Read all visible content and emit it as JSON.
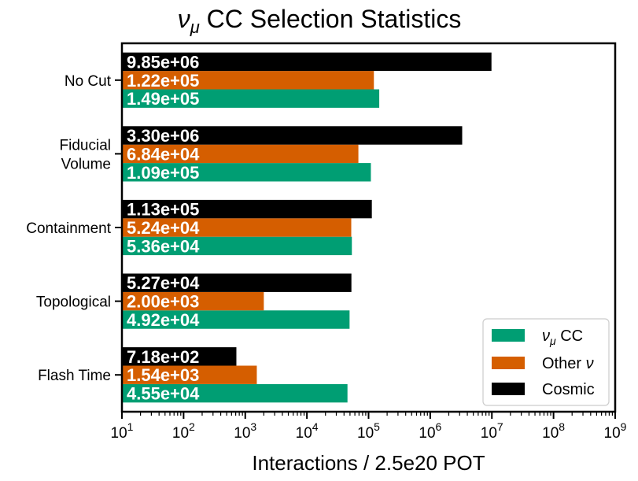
{
  "chart_data": {
    "type": "bar",
    "orientation": "horizontal",
    "title": "νμ CC Selection Statistics",
    "xlabel": "Interactions / 2.5e20 POT",
    "ylabel": "",
    "xscale": "log",
    "xlim": [
      10,
      1000000000
    ],
    "x_ticks": [
      {
        "base": "10",
        "exp": "1"
      },
      {
        "base": "10",
        "exp": "2"
      },
      {
        "base": "10",
        "exp": "3"
      },
      {
        "base": "10",
        "exp": "4"
      },
      {
        "base": "10",
        "exp": "5"
      },
      {
        "base": "10",
        "exp": "6"
      },
      {
        "base": "10",
        "exp": "7"
      },
      {
        "base": "10",
        "exp": "8"
      },
      {
        "base": "10",
        "exp": "9"
      }
    ],
    "categories": [
      [
        "No Cut"
      ],
      [
        "Fiducial",
        "Volume"
      ],
      [
        "Containment"
      ],
      [
        "Topological"
      ],
      [
        "Flash Time"
      ]
    ],
    "series": [
      {
        "name": "νμ CC",
        "color": "#009E73",
        "values": [
          149000,
          109000,
          53600,
          49200,
          45500
        ],
        "labels": [
          "1.49e+05",
          "1.09e+05",
          "5.36e+04",
          "4.92e+04",
          "4.55e+04"
        ]
      },
      {
        "name": "Other ν",
        "color": "#D55E00",
        "values": [
          122000,
          68400,
          52400,
          2000,
          1540
        ],
        "labels": [
          "1.22e+05",
          "6.84e+04",
          "5.24e+04",
          "2.00e+03",
          "1.54e+03"
        ]
      },
      {
        "name": "Cosmic",
        "color": "#000000",
        "values": [
          9850000,
          3300000,
          113000,
          52700,
          718
        ],
        "labels": [
          "9.85e+06",
          "3.30e+06",
          "1.13e+05",
          "5.27e+04",
          "7.18e+02"
        ]
      }
    ],
    "legend": {
      "placement": "lower-right",
      "order": [
        "νμ CC",
        "Other ν",
        "Cosmic"
      ]
    },
    "grid": false
  }
}
